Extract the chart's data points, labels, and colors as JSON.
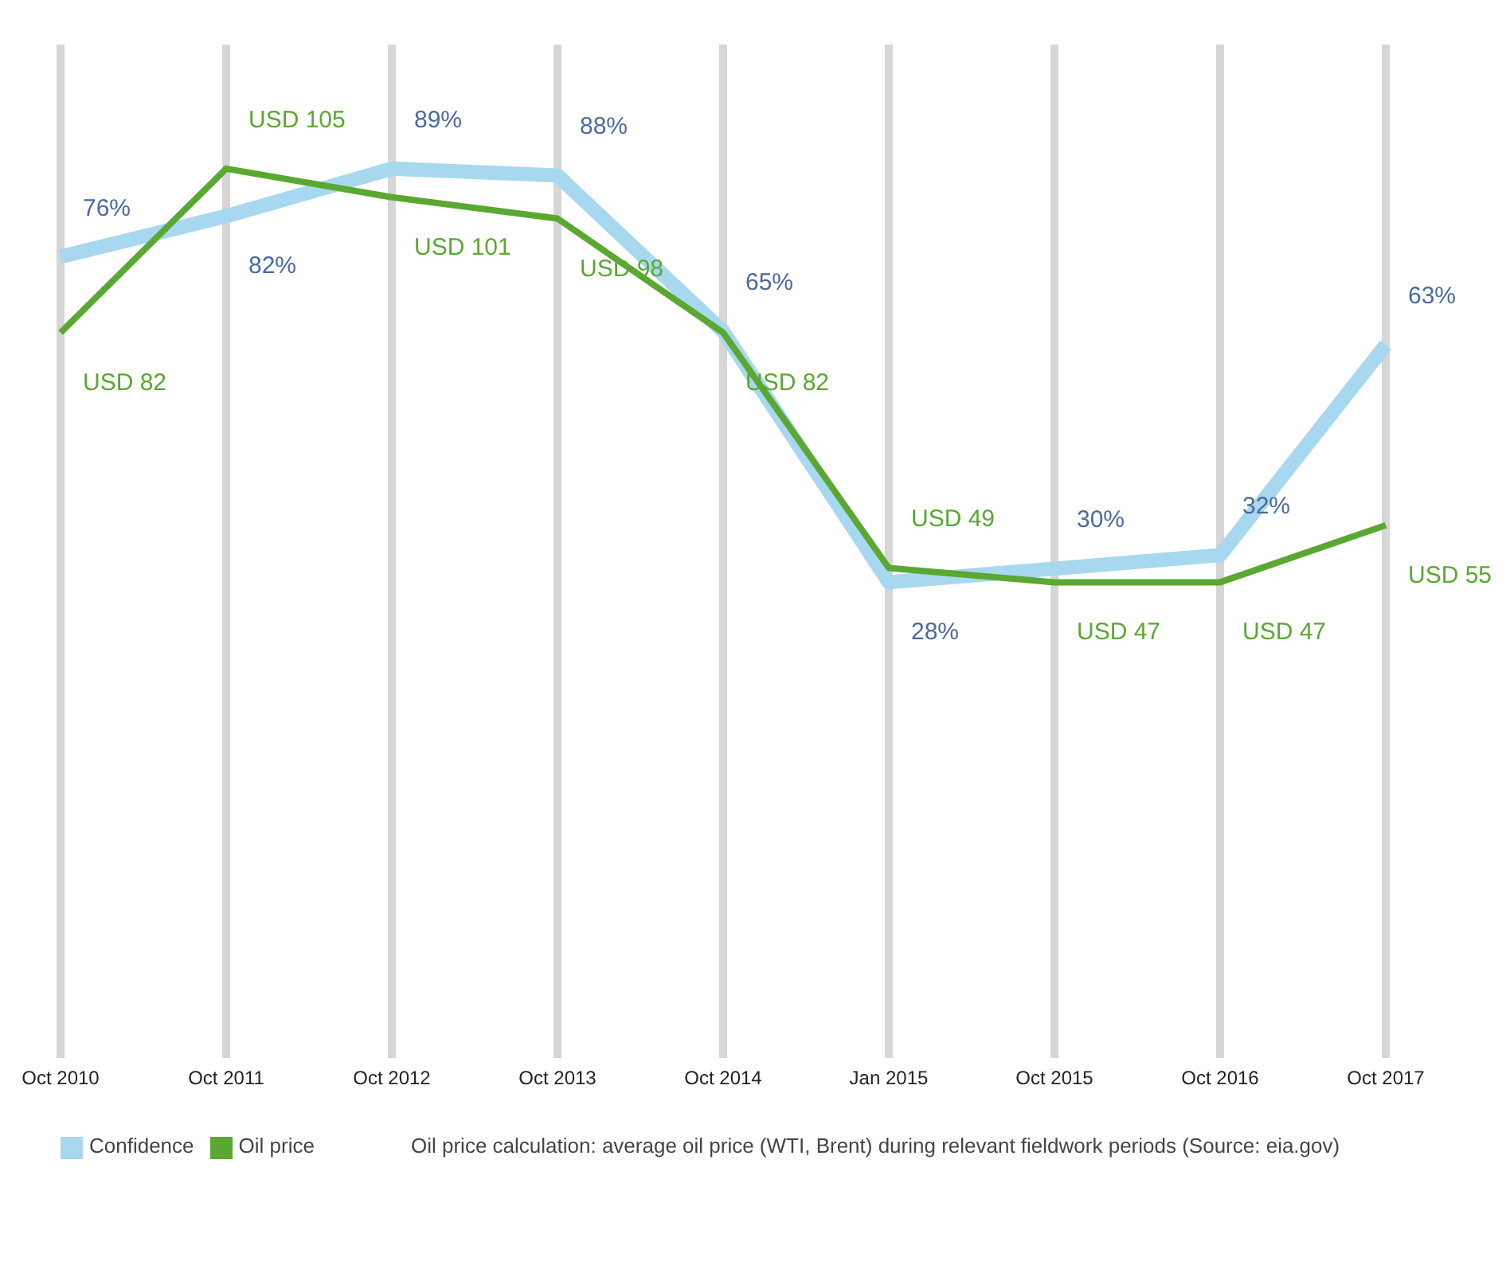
{
  "chart_data": {
    "type": "line",
    "categories": [
      "Oct 2010",
      "Oct 2011",
      "Oct 2012",
      "Oct 2013",
      "Oct 2014",
      "Jan 2015",
      "Oct 2015",
      "Oct 2016",
      "Oct 2017"
    ],
    "series": [
      {
        "name": "Confidence",
        "color": "#a8d8ef",
        "values": [
          76,
          82,
          89,
          88,
          65,
          28,
          30,
          32,
          63
        ],
        "value_labels": [
          "76%",
          "82%",
          "89%",
          "88%",
          "65%",
          "28%",
          "30%",
          "32%",
          "63%"
        ]
      },
      {
        "name": "Oil price",
        "color": "#5aa832",
        "axis": "y2",
        "values": [
          82,
          105,
          101,
          98,
          82,
          49,
          47,
          47,
          55
        ],
        "value_labels": [
          "USD 82",
          "USD 105",
          "USD 101",
          "USD 98",
          "USD 82",
          "USD 49",
          "USD 47",
          "USD 47",
          "USD 55"
        ]
      }
    ],
    "tick_labels": "x",
    "grid": "x",
    "legend": "bottom",
    "marker": "none",
    "line_style": "solid",
    "annotations": [
      "Oil price calculation: average oil price (WTI, Brent) during relevant fieldwork periods (Source: eia.gov)"
    ]
  }
}
